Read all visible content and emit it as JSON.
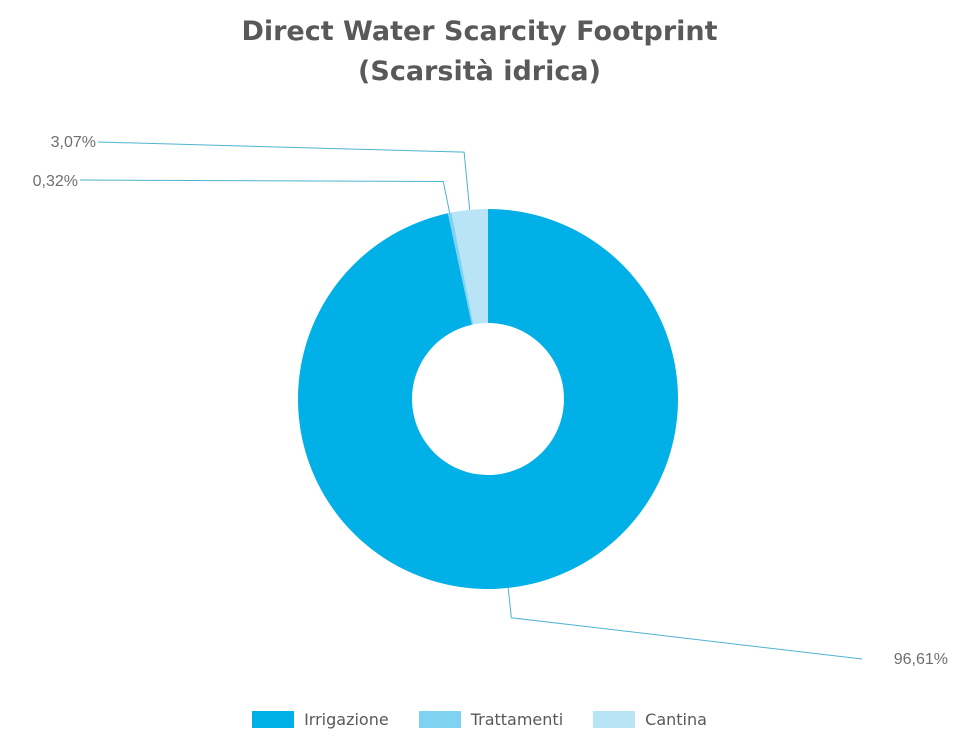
{
  "chart_data": {
    "type": "pie",
    "title": [
      "Direct Water Scarcity Footprint",
      "(Scarsità idrica)"
    ],
    "labels": [
      "Irrigazione",
      "Trattamenti",
      "Cantina"
    ],
    "values": [
      96.61,
      0.32,
      3.07
    ],
    "value_labels": [
      "96,61%",
      "0,32%",
      "3,07%"
    ],
    "colors": [
      "#00b0e6",
      "#7fd2f2",
      "#b8e4f6"
    ],
    "leader_line_color": "#4eb3d3",
    "legend_position": "bottom",
    "inner_radius_ratio": 0.4
  }
}
